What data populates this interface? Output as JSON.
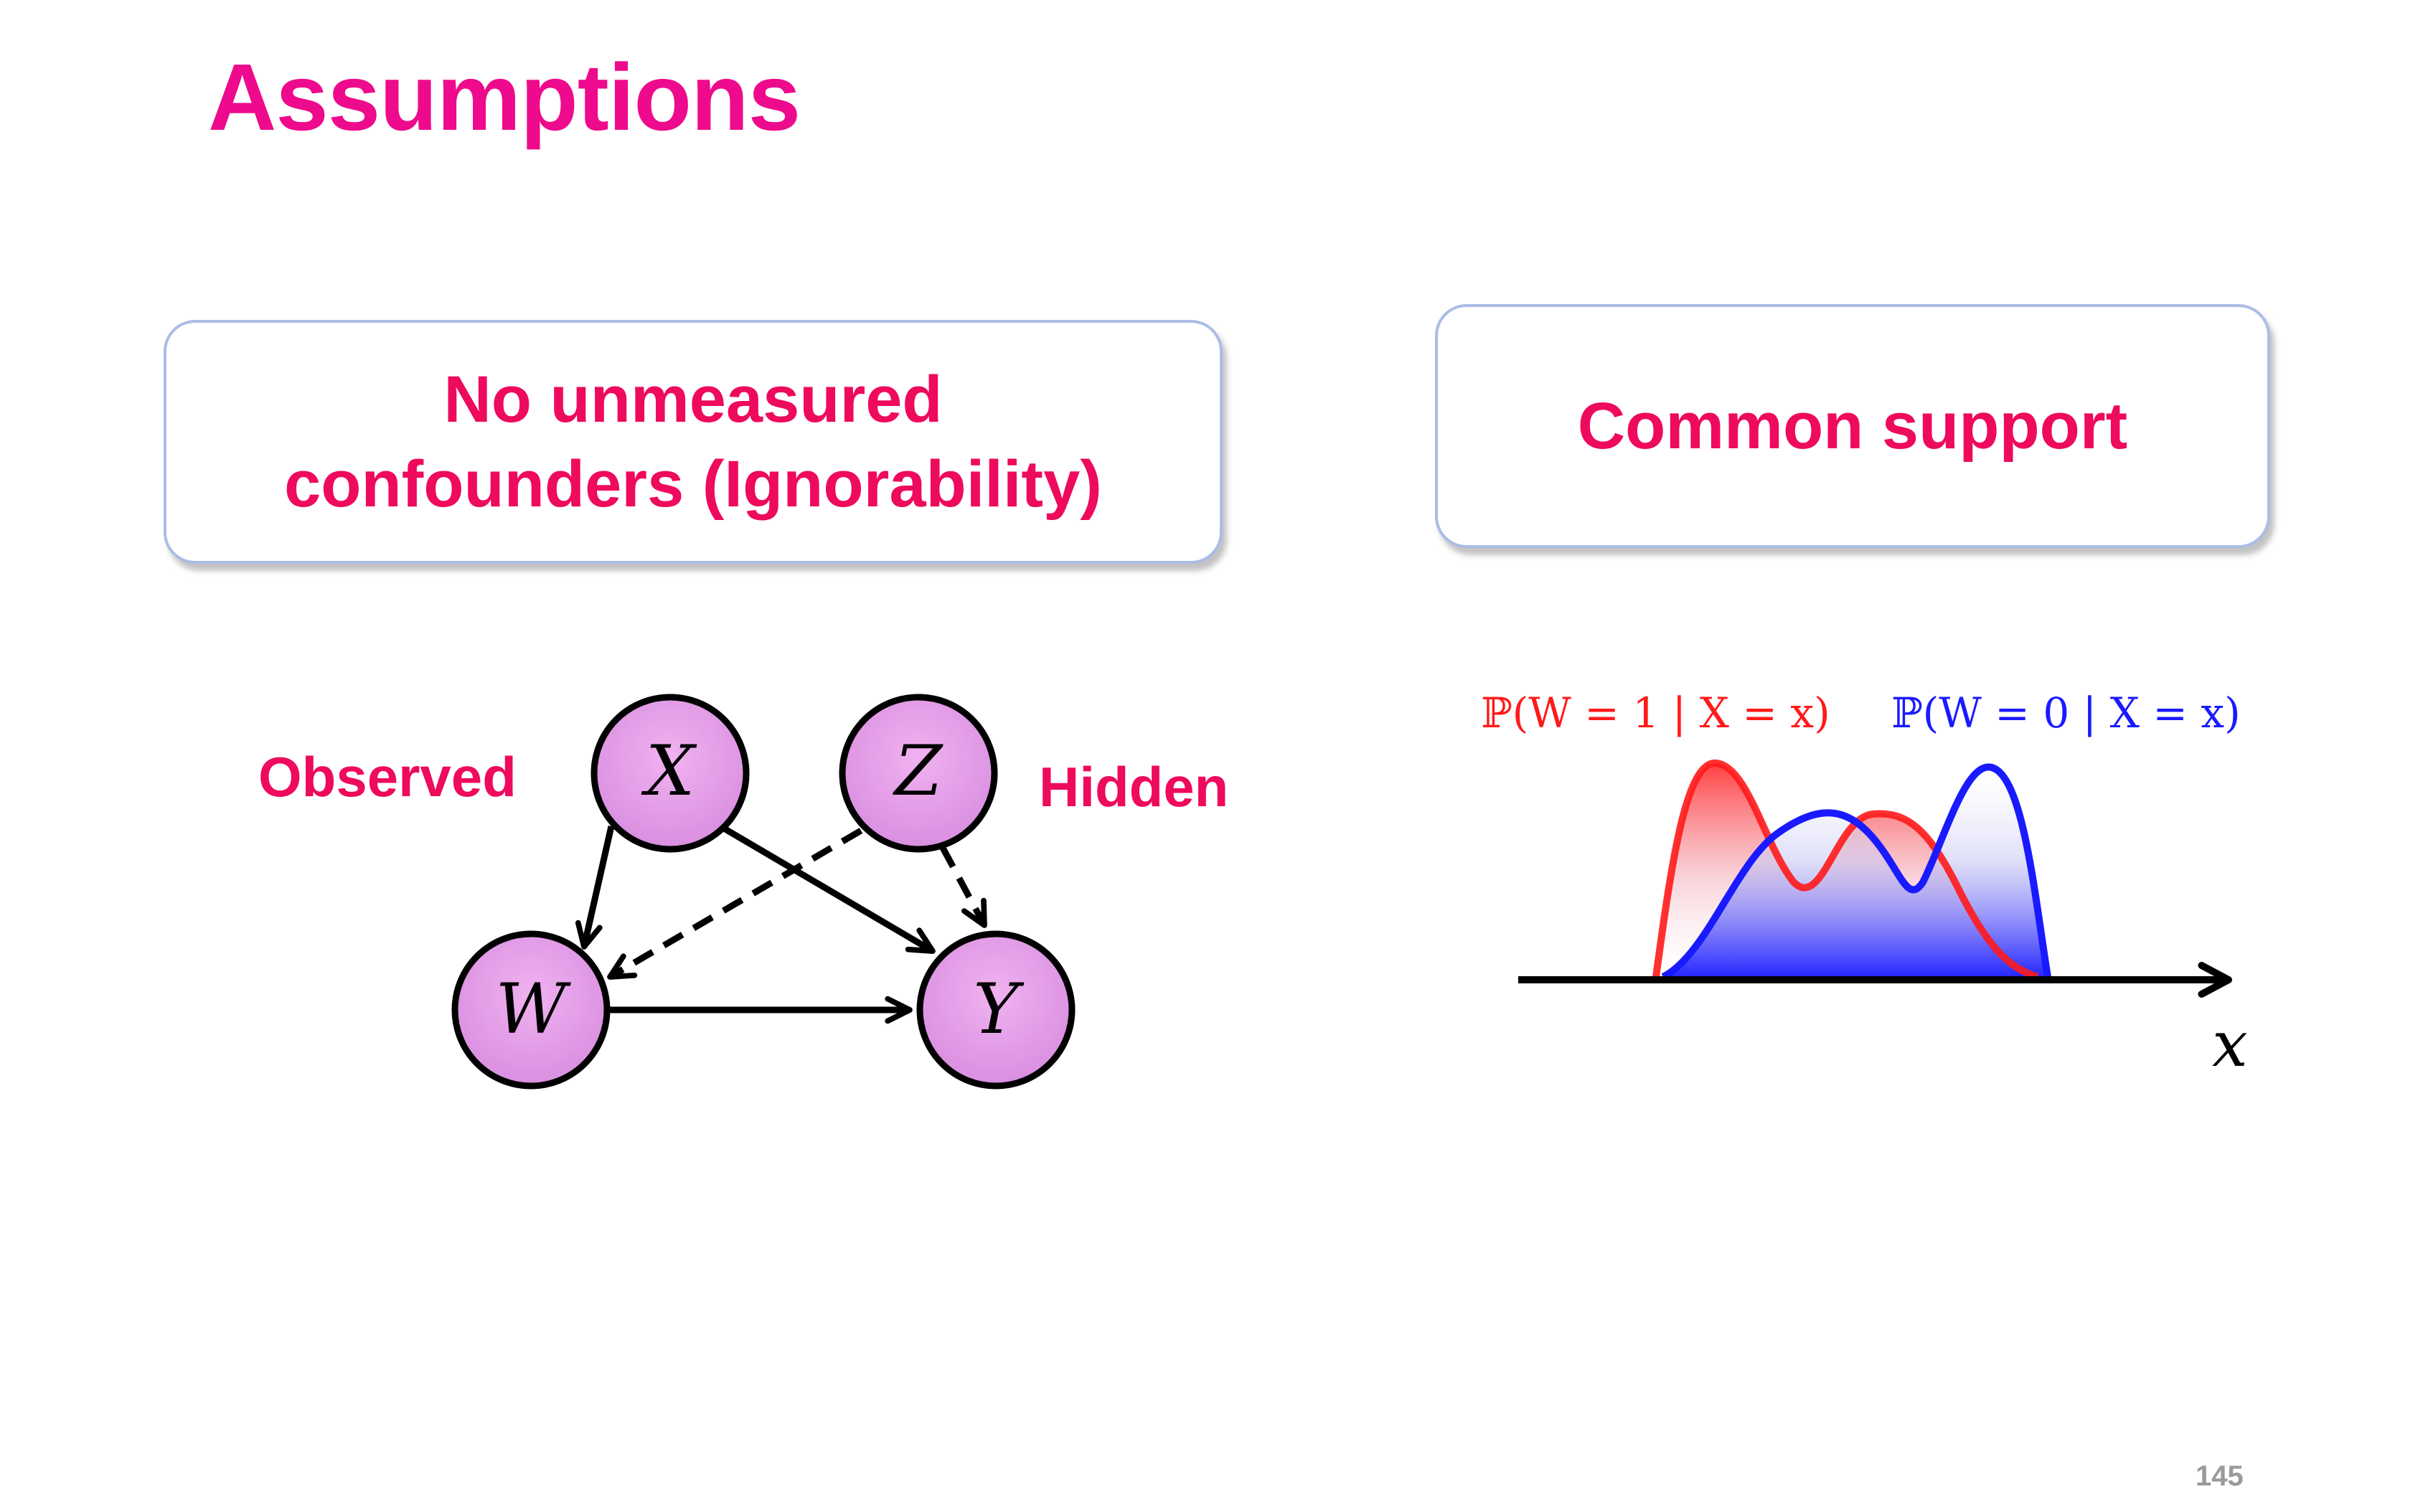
{
  "slide": {
    "title": "Assumptions",
    "page_number": "145"
  },
  "left_panel": {
    "box_line1": "No unmeasured",
    "box_line2": "confounders (Ignorability)",
    "observed_label": "Observed",
    "hidden_label": "Hidden",
    "nodes": [
      "X",
      "Z",
      "W",
      "Y"
    ]
  },
  "right_panel": {
    "box_text": "Common support",
    "formula_treated": "ℙ(W = 1 | X = x)",
    "formula_control": "ℙ(W = 0 | X = x)",
    "axis_label": "x",
    "colors": {
      "treated": "#ff1a1a",
      "control": "#1a1aff"
    }
  }
}
